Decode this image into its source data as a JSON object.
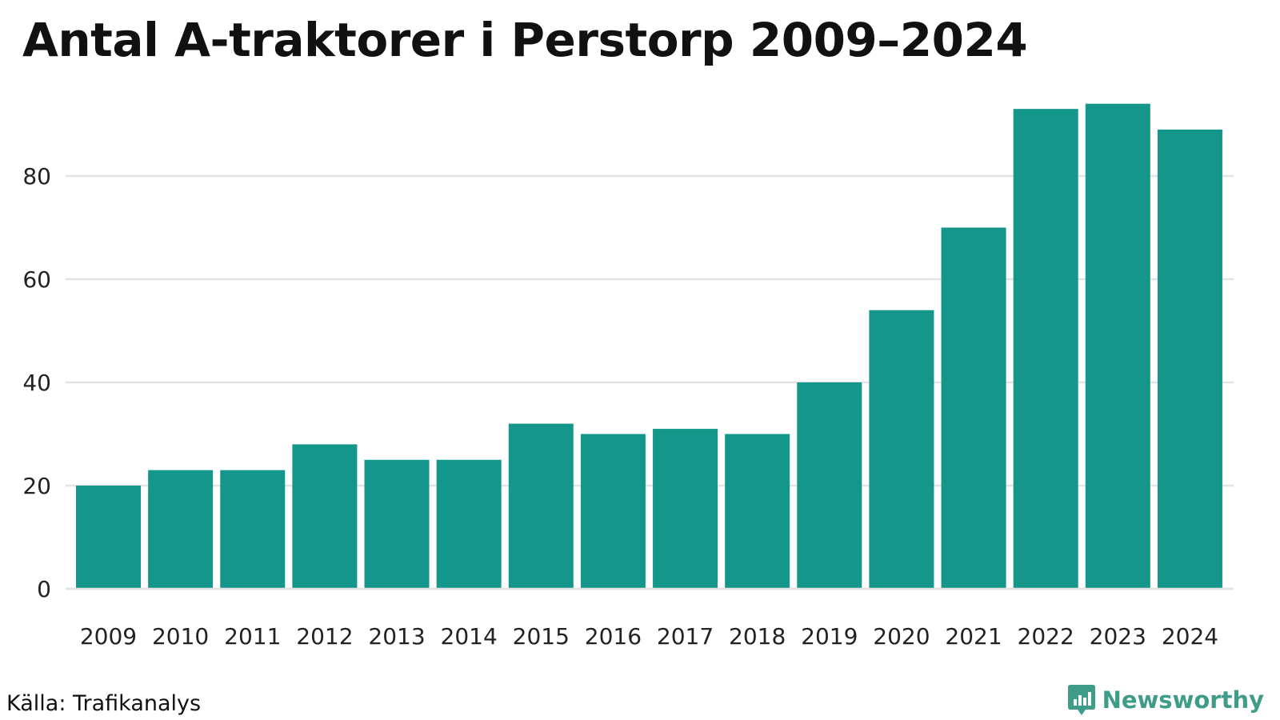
{
  "title": "Antal A-traktorer i Perstorp 2009–2024",
  "source": "Källa: Trafikanalys",
  "brand": {
    "name": "Newsworthy",
    "icon": "newsworthy-logo-icon",
    "color": "#3f9c89"
  },
  "chart_data": {
    "type": "bar",
    "title": "Antal A-traktorer i Perstorp 2009–2024",
    "xlabel": "",
    "ylabel": "",
    "categories": [
      "2009",
      "2010",
      "2011",
      "2012",
      "2013",
      "2014",
      "2015",
      "2016",
      "2017",
      "2018",
      "2019",
      "2020",
      "2021",
      "2022",
      "2023",
      "2024"
    ],
    "values": [
      20,
      23,
      23,
      28,
      25,
      25,
      32,
      30,
      31,
      30,
      40,
      54,
      70,
      93,
      94,
      89
    ],
    "ylim": [
      0,
      96
    ],
    "yticks": [
      0,
      20,
      40,
      60,
      80
    ],
    "ytick_labels": [
      "0",
      "20",
      "40",
      "60",
      "80"
    ],
    "grid": true,
    "legend": "none",
    "bar_color": "#14968a",
    "grid_color": "#e3e3e6"
  }
}
